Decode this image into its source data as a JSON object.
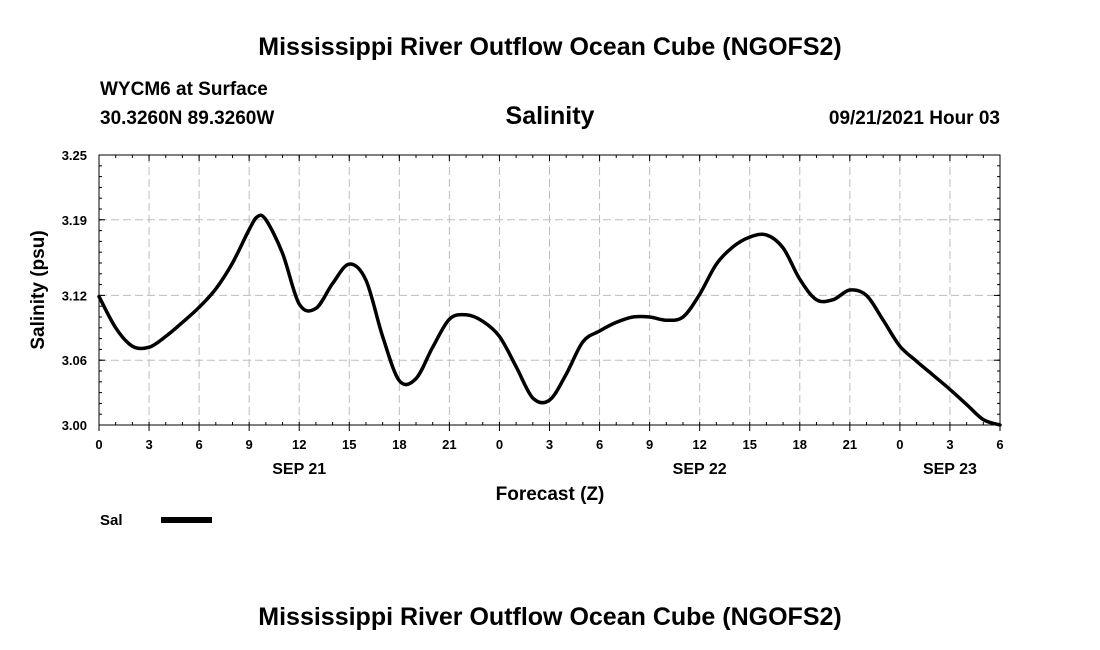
{
  "header": {
    "title_top": "Mississippi River Outflow Ocean Cube (NGOFS2)",
    "station": "WYCM6 at Surface",
    "coords": "30.3260N  89.3260W",
    "variable": "Salinity",
    "datetime": "09/21/2021 Hour 03",
    "title_bottom": "Mississippi River Outflow Ocean Cube (NGOFS2)"
  },
  "chart_data": {
    "type": "line",
    "title": "Salinity",
    "xlabel": "Forecast (Z)",
    "ylabel": "Salinity (psu)",
    "xlim": [
      0,
      54
    ],
    "ylim": [
      3.0,
      3.25
    ],
    "yticks": [
      3.0,
      3.06,
      3.12,
      3.19,
      3.25
    ],
    "ytick_labels": [
      "3.00",
      "3.06",
      "3.12",
      "3.19",
      "3.25"
    ],
    "xticks": [
      0,
      3,
      6,
      9,
      12,
      15,
      18,
      21,
      24,
      27,
      30,
      33,
      36,
      39,
      42,
      45,
      48,
      51,
      54
    ],
    "xtick_labels": [
      "0",
      "3",
      "6",
      "9",
      "12",
      "15",
      "18",
      "21",
      "0",
      "3",
      "6",
      "9",
      "12",
      "15",
      "18",
      "21",
      "0",
      "3",
      "6"
    ],
    "date_labels": [
      {
        "x": 12,
        "label": "SEP 21"
      },
      {
        "x": 36,
        "label": "SEP 22"
      },
      {
        "x": 51,
        "label": "SEP 23"
      }
    ],
    "grid": true,
    "legend_position": "bottom-left",
    "series": [
      {
        "name": "Sal",
        "color": "#000000",
        "x": [
          0,
          1,
          2,
          3,
          4,
          5,
          6,
          7,
          8,
          9,
          9.5,
          10,
          11,
          12,
          13,
          14,
          15,
          16,
          17,
          18,
          19,
          20,
          21,
          22,
          23,
          24,
          25,
          26,
          27,
          28,
          29,
          30,
          31,
          32,
          33,
          34,
          35,
          36,
          37,
          38,
          39,
          40,
          41,
          42,
          43,
          44,
          45,
          46,
          47,
          48,
          49,
          50,
          51,
          52,
          53,
          54
        ],
        "values": [
          3.119,
          3.09,
          3.073,
          3.072,
          3.082,
          3.095,
          3.109,
          3.126,
          3.15,
          3.181,
          3.193,
          3.19,
          3.159,
          3.112,
          3.108,
          3.131,
          3.149,
          3.134,
          3.082,
          3.041,
          3.043,
          3.072,
          3.098,
          3.102,
          3.096,
          3.082,
          3.054,
          3.025,
          3.023,
          3.047,
          3.077,
          3.087,
          3.095,
          3.1,
          3.1,
          3.097,
          3.1,
          3.121,
          3.149,
          3.165,
          3.174,
          3.176,
          3.164,
          3.135,
          3.116,
          3.116,
          3.125,
          3.12,
          3.097,
          3.073,
          3.059,
          3.046,
          3.033,
          3.019,
          3.005,
          2.992
        ]
      }
    ]
  }
}
